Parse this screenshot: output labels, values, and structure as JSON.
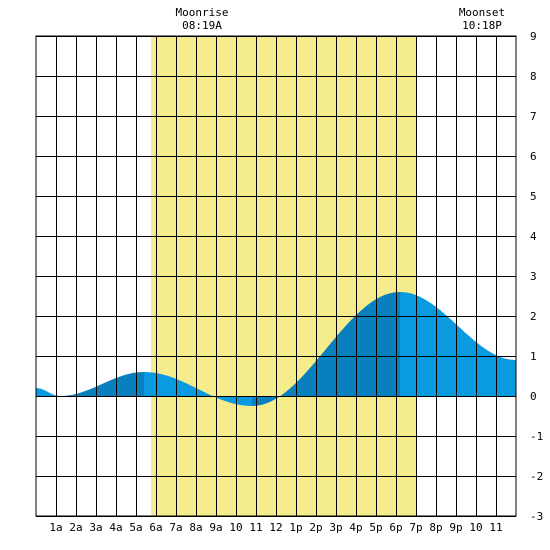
{
  "chart_data": {
    "type": "area",
    "title": "",
    "xlabel": "",
    "ylabel": "",
    "xlim": [
      0,
      24
    ],
    "ylim": [
      -3,
      9
    ],
    "yticks": [
      -3,
      -2,
      -1,
      0,
      1,
      2,
      3,
      4,
      5,
      6,
      7,
      8,
      9
    ],
    "grid": true,
    "xtick_labels": [
      "1a",
      "2a",
      "3a",
      "4a",
      "5a",
      "6a",
      "7a",
      "8a",
      "9a",
      "10",
      "11",
      "12",
      "1p",
      "2p",
      "3p",
      "4p",
      "5p",
      "6p",
      "7p",
      "8p",
      "9p",
      "10",
      "11"
    ],
    "daylight": {
      "start_hour": 5.75,
      "end_hour": 19.0,
      "color": "#f5ec8c"
    },
    "annotations": [
      {
        "label": "Moonrise",
        "time": "08:19A",
        "hour": 8.3
      },
      {
        "label": "Moonset",
        "time": "10:18P",
        "hour": 22.3
      }
    ],
    "series": [
      {
        "x": [
          0,
          1.2,
          5.4,
          10.8,
          18.2,
          24
        ],
        "y": [
          0.2,
          0.0,
          0.6,
          -0.25,
          2.6,
          0.9
        ]
      }
    ],
    "colors": {
      "light": "#0a9ae0",
      "dark": "#0a7fbd",
      "grid": "#000000"
    }
  }
}
